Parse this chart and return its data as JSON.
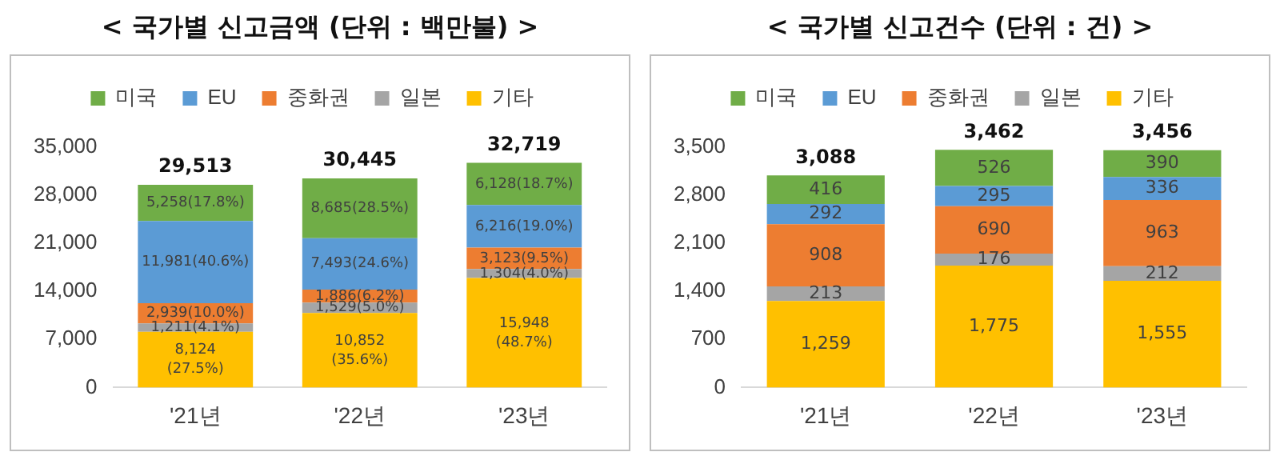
{
  "chart_data": [
    {
      "type": "bar",
      "title": "< 국가별 신고금액 (단위 : 백만불) >",
      "categories": [
        "'21년",
        "'22년",
        "'23년"
      ],
      "stacked": true,
      "legend": "top",
      "grid": false,
      "ylim": [
        0,
        35000
      ],
      "yticks": [
        {
          "value": 0,
          "label": "0"
        },
        {
          "value": 7000,
          "label": "7,000"
        },
        {
          "value": 14000,
          "label": "14,000"
        },
        {
          "value": 21000,
          "label": "21,000"
        },
        {
          "value": 28000,
          "label": "28,000"
        },
        {
          "value": 35000,
          "label": "35,000"
        }
      ],
      "series": [
        {
          "name": "기타",
          "color": "#ffc000",
          "values": [
            8124,
            10852,
            15948
          ],
          "value_labels": [
            "8,124\n(27.5%)",
            "10,852\n(35.6%)",
            "15,948\n(48.7%)"
          ]
        },
        {
          "name": "일본",
          "color": "#a5a5a5",
          "values": [
            1211,
            1529,
            1304
          ],
          "value_labels": [
            "1,211(4.1%)",
            "1,529(5.0%)",
            "1,304(4.0%)"
          ]
        },
        {
          "name": "중화권",
          "color": "#ed7d31",
          "values": [
            2939,
            1886,
            3123
          ],
          "value_labels": [
            "2,939(10.0%)",
            "1,886(6.2%)",
            "3,123(9.5%)"
          ]
        },
        {
          "name": "EU",
          "color": "#5b9bd5",
          "values": [
            11981,
            7493,
            6216
          ],
          "value_labels": [
            "11,981(40.6%)",
            "7,493(24.6%)",
            "6,216(19.0%)"
          ]
        },
        {
          "name": "미국",
          "color": "#70ad47",
          "values": [
            5258,
            8685,
            6128
          ],
          "value_labels": [
            "5,258(17.8%)",
            "8,685(28.5%)",
            "6,128(18.7%)"
          ]
        }
      ],
      "totals": [
        "29,513",
        "30,445",
        "32,719"
      ]
    },
    {
      "type": "bar",
      "title": "< 국가별 신고건수 (단위 : 건) >",
      "categories": [
        "'21년",
        "'22년",
        "'23년"
      ],
      "stacked": true,
      "legend": "top",
      "grid": false,
      "ylim": [
        0,
        3500
      ],
      "yticks": [
        {
          "value": 0,
          "label": "0"
        },
        {
          "value": 700,
          "label": "700"
        },
        {
          "value": 1400,
          "label": "1,400"
        },
        {
          "value": 2100,
          "label": "2,100"
        },
        {
          "value": 2800,
          "label": "2,800"
        },
        {
          "value": 3500,
          "label": "3,500"
        }
      ],
      "series": [
        {
          "name": "기타",
          "color": "#ffc000",
          "values": [
            1259,
            1775,
            1555
          ],
          "value_labels": [
            "1,259",
            "1,775",
            "1,555"
          ]
        },
        {
          "name": "일본",
          "color": "#a5a5a5",
          "values": [
            213,
            176,
            212
          ],
          "value_labels": [
            "213",
            "176",
            "212"
          ]
        },
        {
          "name": "중화권",
          "color": "#ed7d31",
          "values": [
            908,
            690,
            963
          ],
          "value_labels": [
            "908",
            "690",
            "963"
          ]
        },
        {
          "name": "EU",
          "color": "#5b9bd5",
          "values": [
            292,
            295,
            336
          ],
          "value_labels": [
            "292",
            "295",
            "336"
          ]
        },
        {
          "name": "미국",
          "color": "#70ad47",
          "values": [
            416,
            526,
            390
          ],
          "value_labels": [
            "416",
            "526",
            "390"
          ]
        }
      ],
      "totals": [
        "3,088",
        "3,462",
        "3,456"
      ]
    }
  ]
}
